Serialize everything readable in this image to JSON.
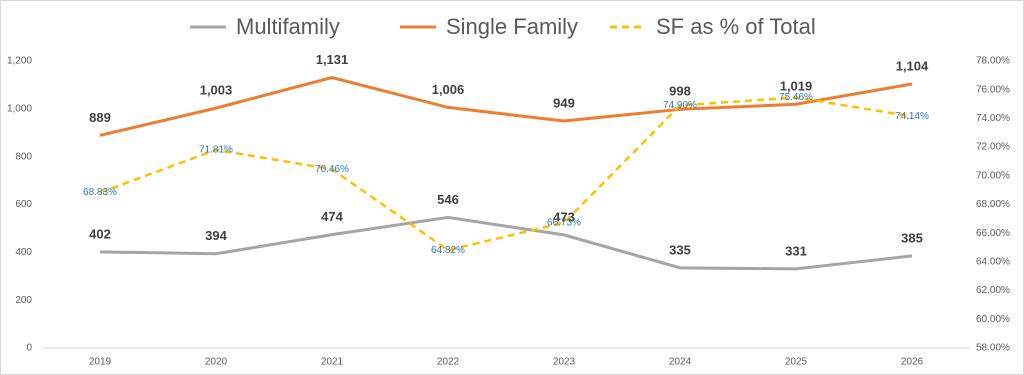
{
  "chart_data": {
    "type": "line",
    "categories": [
      "2019",
      "2020",
      "2021",
      "2022",
      "2023",
      "2024",
      "2025",
      "2026"
    ],
    "series": [
      {
        "name": "Multifamily",
        "color": "#a5a5a5",
        "values": [
          402,
          394,
          474,
          546,
          473,
          335,
          331,
          385
        ],
        "value_labels": [
          "402",
          "394",
          "474",
          "546",
          "473",
          "335",
          "331",
          "385"
        ]
      },
      {
        "name": "Single Family",
        "color": "#ed7d31",
        "values": [
          889,
          1003,
          1131,
          1006,
          949,
          998,
          1019,
          1104
        ],
        "value_labels": [
          "889",
          "1,003",
          "1,131",
          "1,006",
          "949",
          "998",
          "1,019",
          "1,104"
        ]
      },
      {
        "name": "SF as % of Total",
        "color": "#ffc000",
        "dashed": true,
        "axis": "y2",
        "label_color": "#2e75b6",
        "values": [
          68.83,
          71.81,
          70.46,
          64.82,
          66.73,
          74.9,
          75.46,
          74.14
        ],
        "value_labels": [
          "68.83%",
          "71.81%",
          "70.46%",
          "64.82%",
          "66.73%",
          "74.90%",
          "75.46%",
          "74.14%"
        ]
      }
    ],
    "ylim": [
      0,
      1200
    ],
    "yticks": [
      0,
      200,
      400,
      600,
      800,
      {
        "value": 1000,
        "label": "1,000"
      },
      {
        "value": 1200,
        "label": "1,200"
      }
    ],
    "y2lim": [
      58,
      78
    ],
    "y2ticks": [
      {
        "value": 58,
        "label": "58.00%"
      },
      {
        "value": 60,
        "label": "60.00%"
      },
      {
        "value": 62,
        "label": "62.00%"
      },
      {
        "value": 64,
        "label": "64.00%"
      },
      {
        "value": 66,
        "label": "66.00%"
      },
      {
        "value": 68,
        "label": "68.00%"
      },
      {
        "value": 70,
        "label": "70.00%"
      },
      {
        "value": 72,
        "label": "72.00%"
      },
      {
        "value": 74,
        "label": "74.00%"
      },
      {
        "value": 76,
        "label": "76.00%"
      },
      {
        "value": 78,
        "label": "78.00%"
      }
    ],
    "grid": false,
    "legend": "top"
  }
}
